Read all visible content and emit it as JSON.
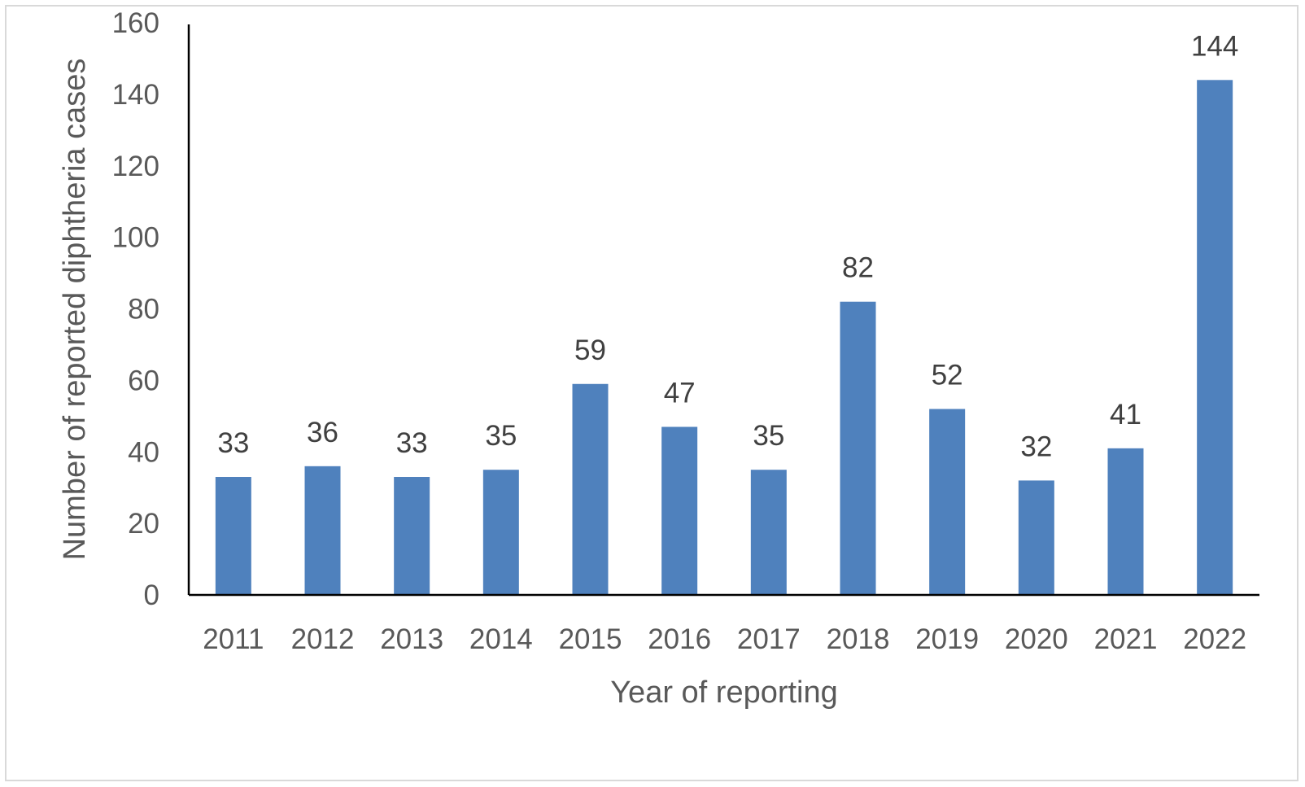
{
  "chart_data": {
    "type": "bar",
    "title": "",
    "xlabel": "Year of reporting",
    "ylabel": "Number of reported diphtheria cases",
    "categories": [
      "2011",
      "2012",
      "2013",
      "2014",
      "2015",
      "2016",
      "2017",
      "2018",
      "2019",
      "2020",
      "2021",
      "2022"
    ],
    "values": [
      33,
      36,
      33,
      35,
      59,
      47,
      35,
      82,
      52,
      32,
      41,
      144
    ],
    "ylim": [
      0,
      160
    ],
    "yticks": [
      0,
      20,
      40,
      60,
      80,
      100,
      120,
      140,
      160
    ],
    "data_labels": true,
    "grid": false,
    "legend": "none",
    "bar_color": "#4f81bd",
    "axis_color": "#000000",
    "text_color": "#595959"
  }
}
